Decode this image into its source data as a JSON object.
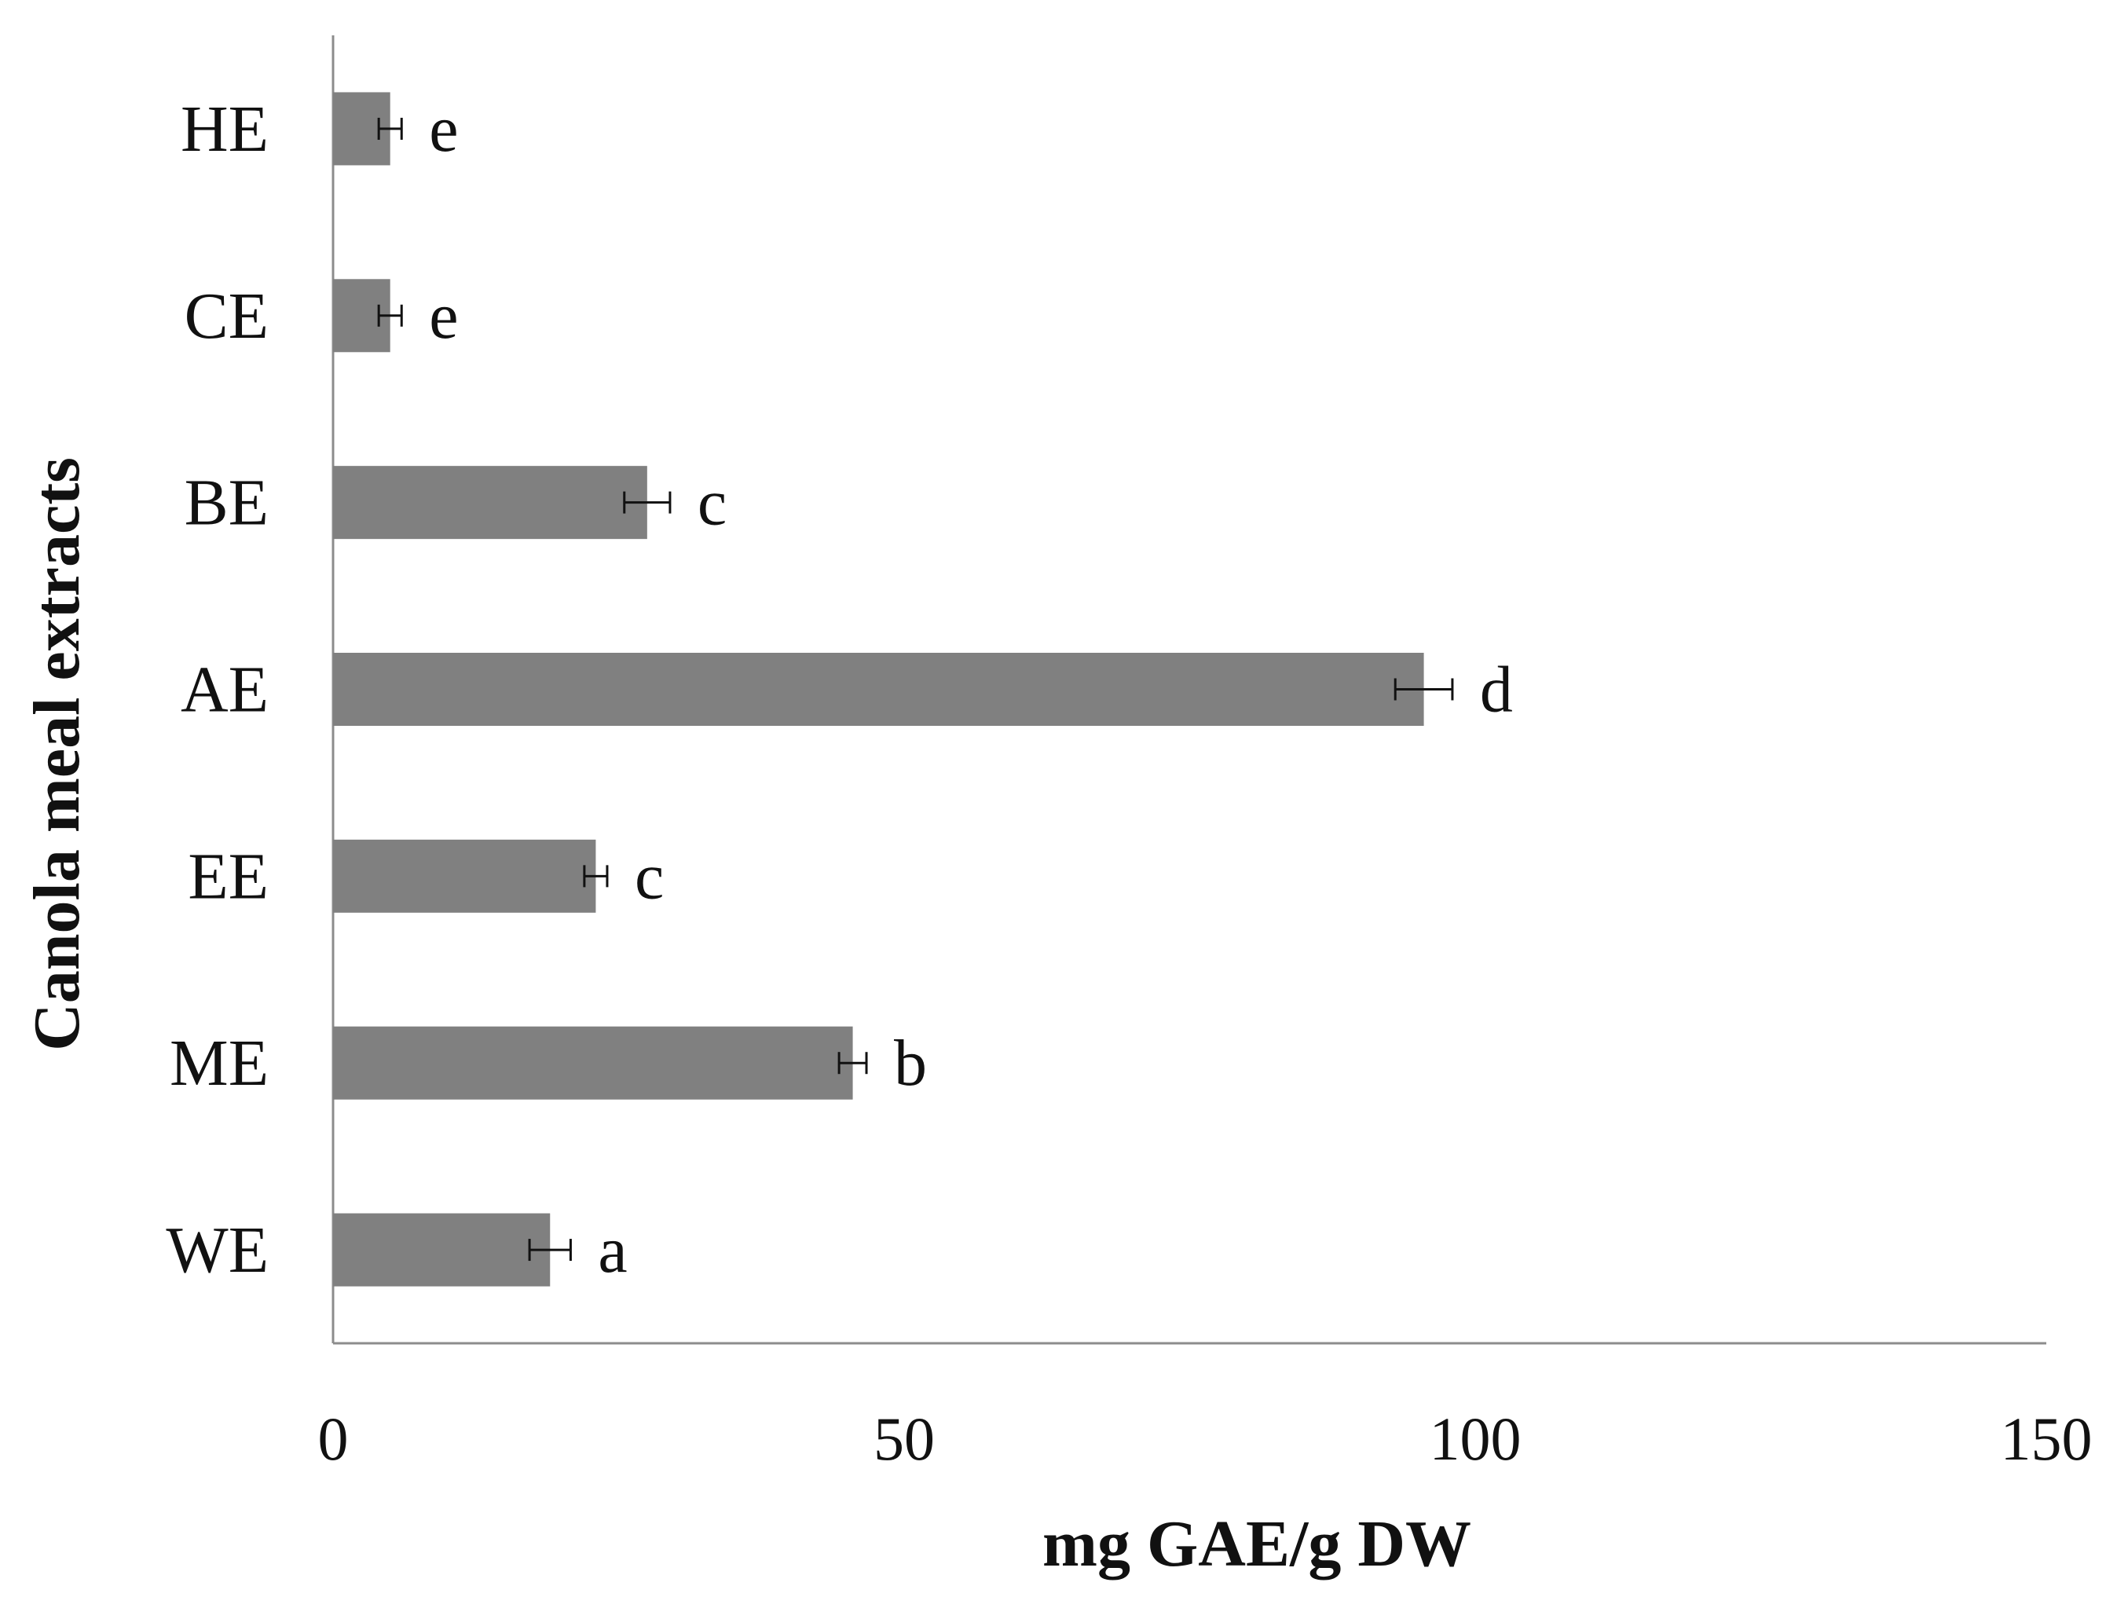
{
  "chart_data": {
    "type": "bar",
    "orientation": "horizontal",
    "categories": [
      "HE",
      "CE",
      "BE",
      "AE",
      "EE",
      "ME",
      "WE"
    ],
    "values": [
      5,
      5,
      27.5,
      95.5,
      23,
      45.5,
      19
    ],
    "errors": [
      1,
      1,
      2,
      2.5,
      1,
      1.2,
      1.8
    ],
    "significance": [
      "e",
      "e",
      "c",
      "d",
      "c",
      "b",
      "a"
    ],
    "xlabel": "mg GAE/g DW",
    "ylabel": "Canola meal extracts",
    "xlim": [
      0,
      150
    ],
    "xticks": [
      "0",
      "50",
      "100",
      "150"
    ],
    "bar_color": "#808080",
    "grid": false,
    "legend": "none"
  }
}
